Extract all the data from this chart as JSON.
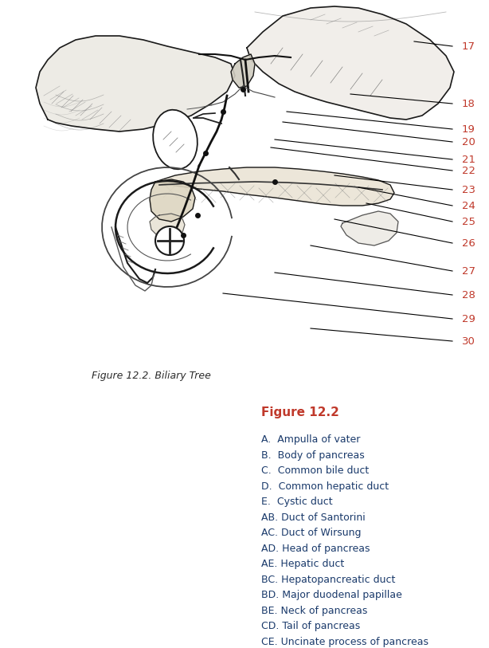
{
  "title": "Figure 12.2. Biliary Tree",
  "legend_title": "Figure 12.2",
  "legend_title_color": "#c0392b",
  "legend_entries": [
    "A.  Ampulla of vater",
    "B.  Body of pancreas",
    "C.  Common bile duct",
    "D.  Common hepatic duct",
    "E.  Cystic duct",
    "AB. Duct of Santorini",
    "AC. Duct of Wirsung",
    "AD. Head of pancreas",
    "AE. Hepatic duct",
    "BC. Hepatopancreatic duct",
    "BD. Major duodenal papillae",
    "BE. Neck of pancreas",
    "CD. Tail of pancreas",
    "CE. Uncinate process of pancreas"
  ],
  "legend_color": "#1a3a6b",
  "numbers": [
    17,
    18,
    19,
    20,
    21,
    22,
    23,
    24,
    25,
    26,
    27,
    28,
    29,
    30
  ],
  "number_color": "#c0392b",
  "line_color": "#000000",
  "bg_color": "#ffffff",
  "fig_width": 6.14,
  "fig_height": 8.13,
  "dpi": 100
}
